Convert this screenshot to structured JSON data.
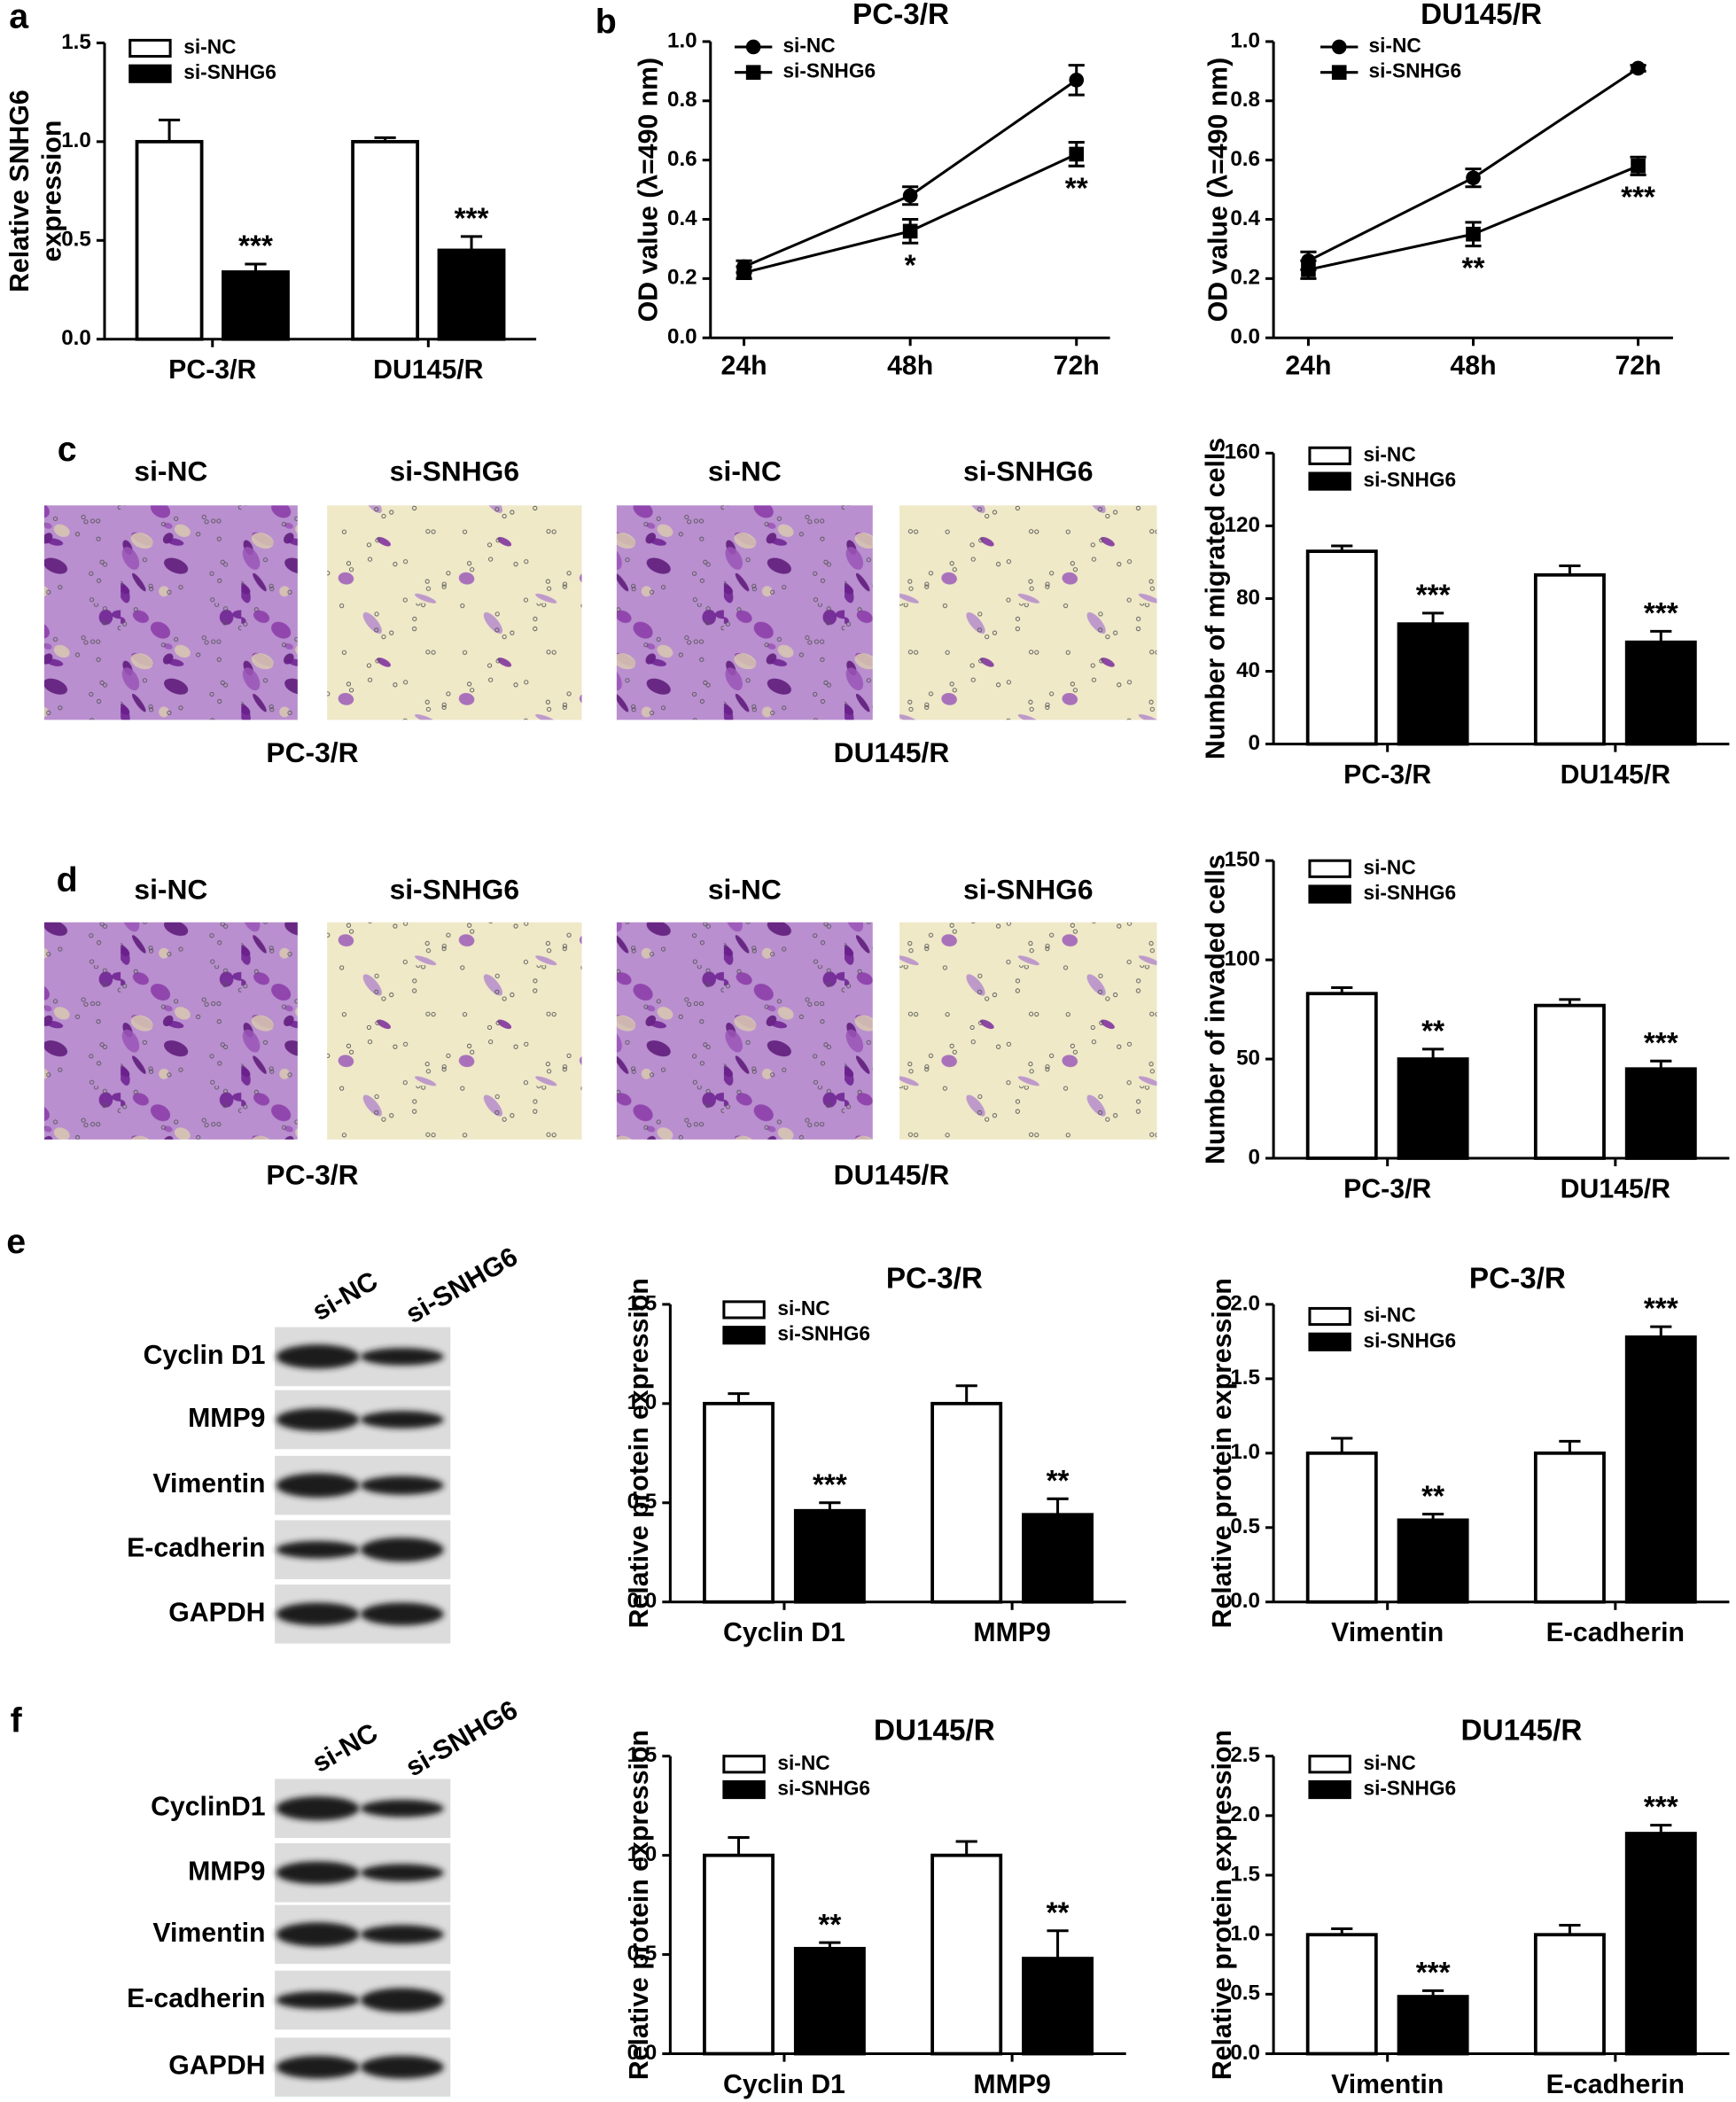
{
  "panel_labels": [
    "a",
    "b",
    "c",
    "d",
    "e",
    "f"
  ],
  "micrographs": [
    {
      "conditions": [
        "si-NC",
        "si-SNHG6",
        "si-NC",
        "si-SNHG6"
      ],
      "cell_lines": [
        "PC-3/R",
        "DU145/R"
      ]
    },
    {
      "conditions": [
        "si-NC",
        "si-SNHG6",
        "si-NC",
        "si-SNHG6"
      ],
      "cell_lines": [
        "PC-3/R",
        "DU145/R"
      ]
    }
  ],
  "blots": [
    {
      "lanes": [
        "si-NC",
        "si-SNHG6"
      ],
      "proteins": [
        "Cyclin D1",
        "MMP9",
        "Vimentin",
        "E-cadherin",
        "GAPDH"
      ]
    },
    {
      "lanes": [
        "si-NC",
        "si-SNHG6"
      ],
      "proteins": [
        "CyclinD1",
        "MMP9",
        "Vimentin",
        "E-cadherin",
        "GAPDH"
      ]
    }
  ],
  "chart_data": [
    {
      "type": "bar",
      "ylabel": [
        "Relative SNHG6",
        "expression"
      ],
      "categories": [
        "PC-3/R",
        "DU145/R"
      ],
      "series": [
        {
          "name": "si-NC",
          "color": "#ffffff",
          "values": [
            1.0,
            1.0
          ],
          "errors": [
            0.11,
            0.02
          ]
        },
        {
          "name": "si-SNHG6",
          "color": "#000000",
          "values": [
            0.34,
            0.45
          ],
          "errors": [
            0.04,
            0.07
          ],
          "labels": [
            "***",
            "***"
          ]
        }
      ],
      "ylim": [
        0,
        1.5
      ],
      "yticks": [
        {
          "value": 0,
          "label": "0.0"
        },
        0.5,
        {
          "value": 1,
          "label": "1.0"
        },
        1.5
      ]
    },
    {
      "type": "line",
      "title": "PC-3/R",
      "ylabel": "OD value (λ=490 nm)",
      "categories": [
        "24h",
        "48h",
        "72h"
      ],
      "series": [
        {
          "name": "si-NC",
          "color": "#000000",
          "marker": "circle",
          "values": [
            0.24,
            0.48,
            0.87
          ],
          "errors": [
            0.02,
            0.03,
            0.05
          ]
        },
        {
          "name": "si-SNHG6",
          "color": "#000000",
          "marker": "square",
          "values": [
            0.22,
            0.36,
            0.62
          ],
          "errors": [
            0.02,
            0.04,
            0.04
          ],
          "labels": [
            null,
            "*",
            "**"
          ]
        }
      ],
      "ylim": [
        0,
        1
      ],
      "yticks": [
        {
          "value": 0,
          "label": "0.0"
        },
        0.2,
        0.4,
        0.6,
        0.8,
        {
          "value": 1,
          "label": "1.0"
        }
      ]
    },
    {
      "type": "line",
      "title": "DU145/R",
      "ylabel": "OD value (λ=490 nm)",
      "categories": [
        "24h",
        "48h",
        "72h"
      ],
      "series": [
        {
          "name": "si-NC",
          "color": "#000000",
          "marker": "circle",
          "values": [
            0.26,
            0.54,
            0.91
          ],
          "errors": [
            0.03,
            0.03,
            0.01
          ]
        },
        {
          "name": "si-SNHG6",
          "color": "#000000",
          "marker": "square",
          "values": [
            0.23,
            0.35,
            0.58
          ],
          "errors": [
            0.03,
            0.04,
            0.03
          ],
          "labels": [
            null,
            "**",
            "***"
          ]
        }
      ],
      "ylim": [
        0,
        1
      ],
      "yticks": [
        {
          "value": 0,
          "label": "0.0"
        },
        0.2,
        0.4,
        0.6,
        0.8,
        {
          "value": 1,
          "label": "1.0"
        }
      ]
    },
    {
      "type": "bar",
      "ylabel": "Number of migrated cells",
      "categories": [
        "PC-3/R",
        "DU145/R"
      ],
      "series": [
        {
          "name": "si-NC",
          "color": "#ffffff",
          "values": [
            106,
            93
          ],
          "errors": [
            3,
            5
          ]
        },
        {
          "name": "si-SNHG6",
          "color": "#000000",
          "values": [
            66,
            56
          ],
          "errors": [
            6,
            6
          ],
          "labels": [
            "***",
            "***"
          ]
        }
      ],
      "ylim": [
        0,
        160
      ],
      "yticks": [
        0,
        40,
        80,
        120,
        160
      ]
    },
    {
      "type": "bar",
      "ylabel": "Number of invaded cells",
      "categories": [
        "PC-3/R",
        "DU145/R"
      ],
      "series": [
        {
          "name": "si-NC",
          "color": "#ffffff",
          "values": [
            83,
            77
          ],
          "errors": [
            3,
            3
          ]
        },
        {
          "name": "si-SNHG6",
          "color": "#000000",
          "values": [
            50,
            45
          ],
          "errors": [
            5,
            4
          ],
          "labels": [
            "**",
            "***"
          ]
        }
      ],
      "ylim": [
        0,
        150
      ],
      "yticks": [
        0,
        50,
        100,
        150
      ]
    },
    {
      "type": "bar",
      "title": "PC-3/R",
      "ylabel": "Relative protein expression",
      "categories": [
        "Cyclin D1",
        "MMP9"
      ],
      "series": [
        {
          "name": "si-NC",
          "color": "#ffffff",
          "values": [
            1.0,
            1.0
          ],
          "errors": [
            0.05,
            0.09
          ]
        },
        {
          "name": "si-SNHG6",
          "color": "#000000",
          "values": [
            0.46,
            0.44
          ],
          "errors": [
            0.04,
            0.08
          ],
          "labels": [
            "***",
            "**"
          ]
        }
      ],
      "ylim": [
        0,
        1.5
      ],
      "yticks": [
        {
          "value": 0,
          "label": "0.0"
        },
        0.5,
        {
          "value": 1,
          "label": "1.0"
        },
        1.5
      ]
    },
    {
      "type": "bar",
      "title": "PC-3/R",
      "ylabel": "Relative protein expression",
      "categories": [
        "Vimentin",
        "E-cadherin"
      ],
      "series": [
        {
          "name": "si-NC",
          "color": "#ffffff",
          "values": [
            1.0,
            1.0
          ],
          "errors": [
            0.1,
            0.08
          ]
        },
        {
          "name": "si-SNHG6",
          "color": "#000000",
          "values": [
            0.55,
            1.78
          ],
          "errors": [
            0.04,
            0.07
          ],
          "labels": [
            "**",
            "***"
          ]
        }
      ],
      "ylim": [
        0,
        2
      ],
      "yticks": [
        {
          "value": 0,
          "label": "0.0"
        },
        0.5,
        {
          "value": 1,
          "label": "1.0"
        },
        1.5,
        {
          "value": 2,
          "label": "2.0"
        }
      ]
    },
    {
      "type": "bar",
      "title": "DU145/R",
      "ylabel": "Relative protein expression",
      "categories": [
        "Cyclin D1",
        "MMP9"
      ],
      "series": [
        {
          "name": "si-NC",
          "color": "#ffffff",
          "values": [
            1.0,
            1.0
          ],
          "errors": [
            0.09,
            0.07
          ]
        },
        {
          "name": "si-SNHG6",
          "color": "#000000",
          "values": [
            0.53,
            0.48
          ],
          "errors": [
            0.03,
            0.14
          ],
          "labels": [
            "**",
            "**"
          ]
        }
      ],
      "ylim": [
        0,
        1.5
      ],
      "yticks": [
        {
          "value": 0,
          "label": "0.0"
        },
        0.5,
        {
          "value": 1,
          "label": "1.0"
        },
        1.5
      ]
    },
    {
      "type": "bar",
      "title": "DU145/R",
      "ylabel": "Relative protein expression",
      "categories": [
        "Vimentin",
        "E-cadherin"
      ],
      "series": [
        {
          "name": "si-NC",
          "color": "#ffffff",
          "values": [
            1.0,
            1.0
          ],
          "errors": [
            0.05,
            0.08
          ]
        },
        {
          "name": "si-SNHG6",
          "color": "#000000",
          "values": [
            0.48,
            1.85
          ],
          "errors": [
            0.05,
            0.07
          ],
          "labels": [
            "***",
            "***"
          ]
        }
      ],
      "ylim": [
        0,
        2.5
      ],
      "yticks": [
        {
          "value": 0,
          "label": "0.0"
        },
        0.5,
        {
          "value": 1,
          "label": "1.0"
        },
        1.5,
        {
          "value": 2,
          "label": "2.0"
        },
        2.5
      ]
    }
  ]
}
